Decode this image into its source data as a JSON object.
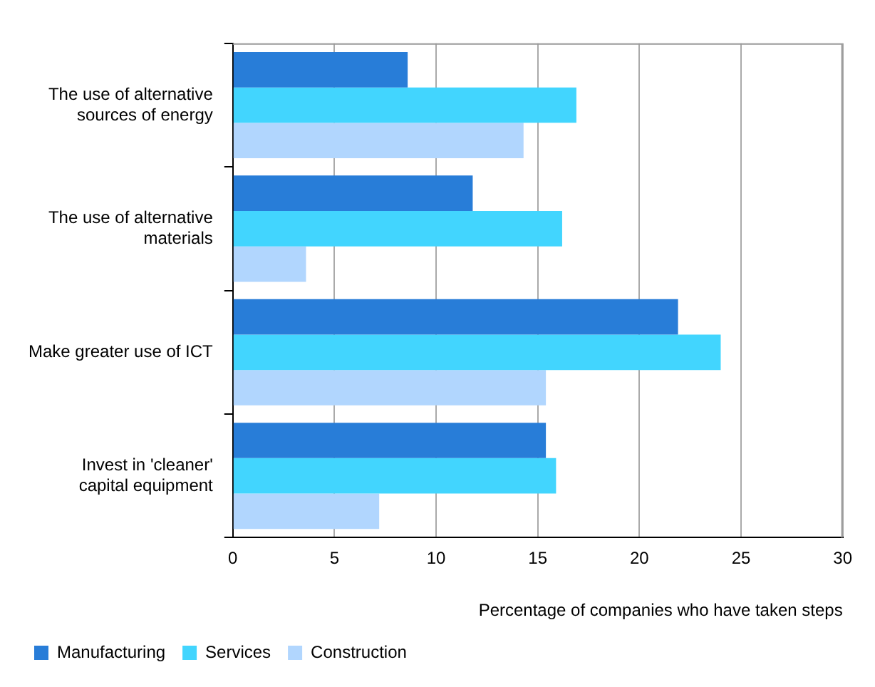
{
  "chart_data": {
    "type": "bar",
    "orientation": "horizontal",
    "xlabel": "Percentage of companies who have taken steps",
    "categories": [
      "The use of alternative sources of energy",
      "The use of alternative materials",
      "Make greater use of ICT",
      "Invest in 'cleaner' capital equipment"
    ],
    "series": [
      {
        "name": "Manufacturing",
        "color": "#287dd8",
        "values": [
          8.6,
          11.8,
          21.9,
          15.4
        ]
      },
      {
        "name": "Services",
        "color": "#42d5fe",
        "values": [
          16.9,
          16.2,
          24.0,
          15.9
        ]
      },
      {
        "name": "Construction",
        "color": "#b1d6fe",
        "values": [
          14.3,
          3.6,
          15.4,
          7.2
        ]
      }
    ],
    "xlim": [
      0,
      30
    ],
    "xticks": [
      0,
      5,
      10,
      15,
      20,
      25,
      30
    ],
    "grid": "x",
    "legend": "bottom left"
  }
}
